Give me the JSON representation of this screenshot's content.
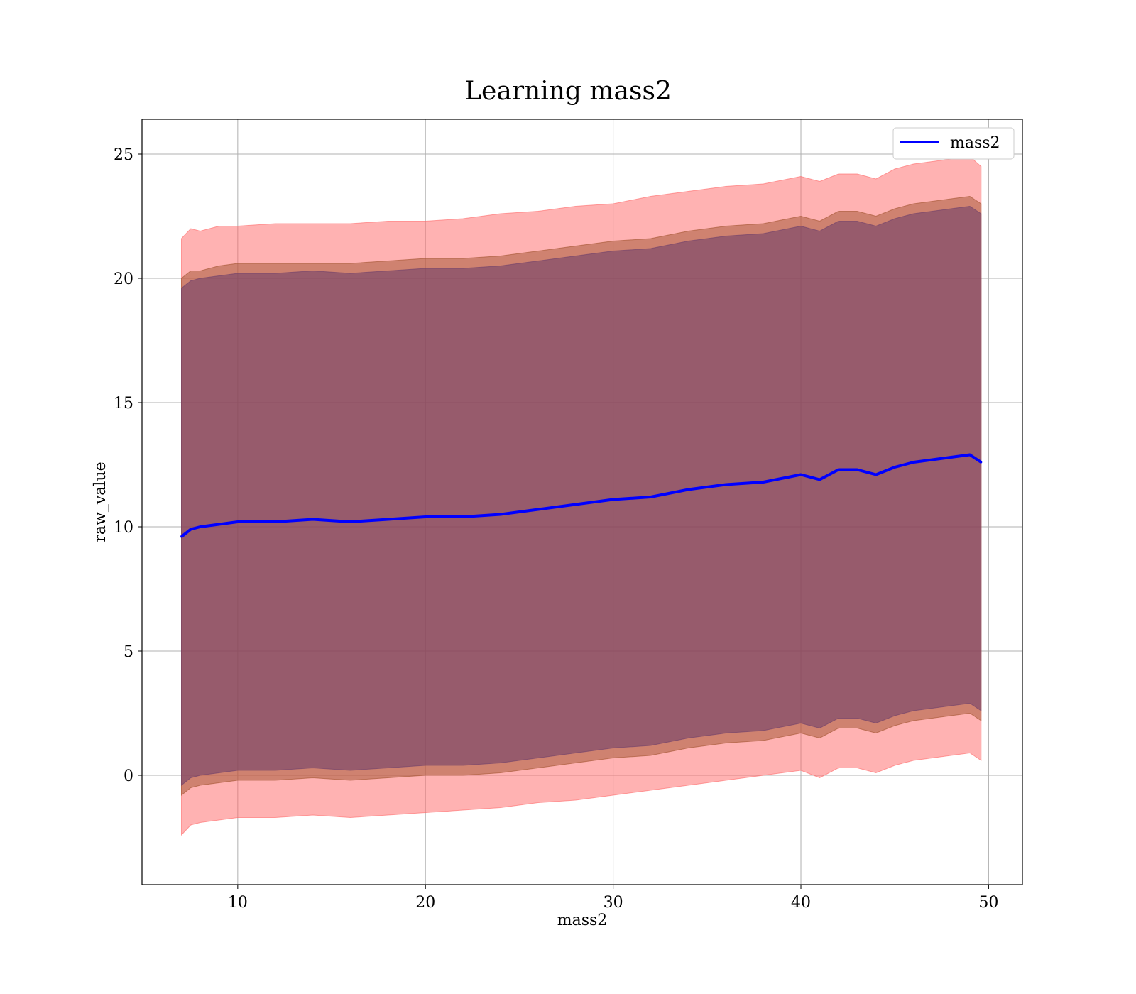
{
  "chart_data": {
    "type": "line",
    "title": "Learning mass2",
    "xlabel": "mass2",
    "ylabel": "raw_value",
    "xlim": [
      4.9,
      51.8
    ],
    "ylim": [
      -4.4,
      26.4
    ],
    "xticks": [
      10,
      20,
      30,
      40,
      50
    ],
    "yticks": [
      0,
      5,
      10,
      15,
      20,
      25
    ],
    "grid": true,
    "legend_position": "top-right",
    "series": [
      {
        "name": "mass2",
        "color": "#0000ff",
        "x": [
          7.0,
          7.5,
          8.0,
          9.0,
          10.0,
          12.0,
          14.0,
          16.0,
          18.0,
          20.0,
          22.0,
          24.0,
          26.0,
          28.0,
          30.0,
          32.0,
          34.0,
          36.0,
          38.0,
          40.0,
          41.0,
          42.0,
          43.0,
          44.0,
          45.0,
          46.0,
          47.0,
          48.0,
          49.0,
          49.6
        ],
        "values": [
          9.6,
          9.9,
          10.0,
          10.1,
          10.2,
          10.2,
          10.3,
          10.2,
          10.3,
          10.4,
          10.4,
          10.5,
          10.7,
          10.9,
          11.1,
          11.2,
          11.5,
          11.7,
          11.8,
          12.1,
          11.9,
          12.3,
          12.3,
          12.1,
          12.4,
          12.6,
          12.7,
          12.8,
          12.9,
          12.6
        ]
      }
    ],
    "bands": [
      {
        "color": "#ff6666",
        "opacity": 0.5,
        "x": [
          7.0,
          7.5,
          8.0,
          9.0,
          10.0,
          12.0,
          14.0,
          16.0,
          18.0,
          20.0,
          22.0,
          24.0,
          26.0,
          28.0,
          30.0,
          32.0,
          34.0,
          36.0,
          38.0,
          40.0,
          41.0,
          42.0,
          43.0,
          44.0,
          45.0,
          46.0,
          47.0,
          48.0,
          49.0,
          49.6
        ],
        "upper": [
          21.6,
          22.0,
          21.9,
          22.1,
          22.1,
          22.2,
          22.2,
          22.2,
          22.3,
          22.3,
          22.4,
          22.6,
          22.7,
          22.9,
          23.0,
          23.3,
          23.5,
          23.7,
          23.8,
          24.1,
          23.9,
          24.2,
          24.2,
          24.0,
          24.4,
          24.6,
          24.7,
          24.8,
          24.9,
          24.5
        ],
        "lower": [
          -2.4,
          -2.0,
          -1.9,
          -1.8,
          -1.7,
          -1.7,
          -1.6,
          -1.7,
          -1.6,
          -1.5,
          -1.4,
          -1.3,
          -1.1,
          -1.0,
          -0.8,
          -0.6,
          -0.4,
          -0.2,
          0.0,
          0.2,
          -0.1,
          0.3,
          0.3,
          0.1,
          0.4,
          0.6,
          0.7,
          0.8,
          0.9,
          0.6
        ]
      },
      {
        "color": "#a0522d",
        "opacity": 0.5,
        "x": [
          7.0,
          7.5,
          8.0,
          9.0,
          10.0,
          12.0,
          14.0,
          16.0,
          18.0,
          20.0,
          22.0,
          24.0,
          26.0,
          28.0,
          30.0,
          32.0,
          34.0,
          36.0,
          38.0,
          40.0,
          41.0,
          42.0,
          43.0,
          44.0,
          45.0,
          46.0,
          47.0,
          48.0,
          49.0,
          49.6
        ],
        "upper": [
          20.0,
          20.3,
          20.3,
          20.5,
          20.6,
          20.6,
          20.6,
          20.6,
          20.7,
          20.8,
          20.8,
          20.9,
          21.1,
          21.3,
          21.5,
          21.6,
          21.9,
          22.1,
          22.2,
          22.5,
          22.3,
          22.7,
          22.7,
          22.5,
          22.8,
          23.0,
          23.1,
          23.2,
          23.3,
          23.0
        ],
        "lower": [
          -0.8,
          -0.5,
          -0.4,
          -0.3,
          -0.2,
          -0.2,
          -0.1,
          -0.2,
          -0.1,
          0.0,
          0.0,
          0.1,
          0.3,
          0.5,
          0.7,
          0.8,
          1.1,
          1.3,
          1.4,
          1.7,
          1.5,
          1.9,
          1.9,
          1.7,
          2.0,
          2.2,
          2.3,
          2.4,
          2.5,
          2.2
        ]
      },
      {
        "color": "#6a3d6a",
        "opacity": 0.55,
        "x": [
          7.0,
          7.5,
          8.0,
          9.0,
          10.0,
          12.0,
          14.0,
          16.0,
          18.0,
          20.0,
          22.0,
          24.0,
          26.0,
          28.0,
          30.0,
          32.0,
          34.0,
          36.0,
          38.0,
          40.0,
          41.0,
          42.0,
          43.0,
          44.0,
          45.0,
          46.0,
          47.0,
          48.0,
          49.0,
          49.6
        ],
        "upper": [
          19.6,
          19.9,
          20.0,
          20.1,
          20.2,
          20.2,
          20.3,
          20.2,
          20.3,
          20.4,
          20.4,
          20.5,
          20.7,
          20.9,
          21.1,
          21.2,
          21.5,
          21.7,
          21.8,
          22.1,
          21.9,
          22.3,
          22.3,
          22.1,
          22.4,
          22.6,
          22.7,
          22.8,
          22.9,
          22.6
        ],
        "lower": [
          -0.4,
          -0.1,
          0.0,
          0.1,
          0.2,
          0.2,
          0.3,
          0.2,
          0.3,
          0.4,
          0.4,
          0.5,
          0.7,
          0.9,
          1.1,
          1.2,
          1.5,
          1.7,
          1.8,
          2.1,
          1.9,
          2.3,
          2.3,
          2.1,
          2.4,
          2.6,
          2.7,
          2.8,
          2.9,
          2.6
        ]
      }
    ]
  }
}
